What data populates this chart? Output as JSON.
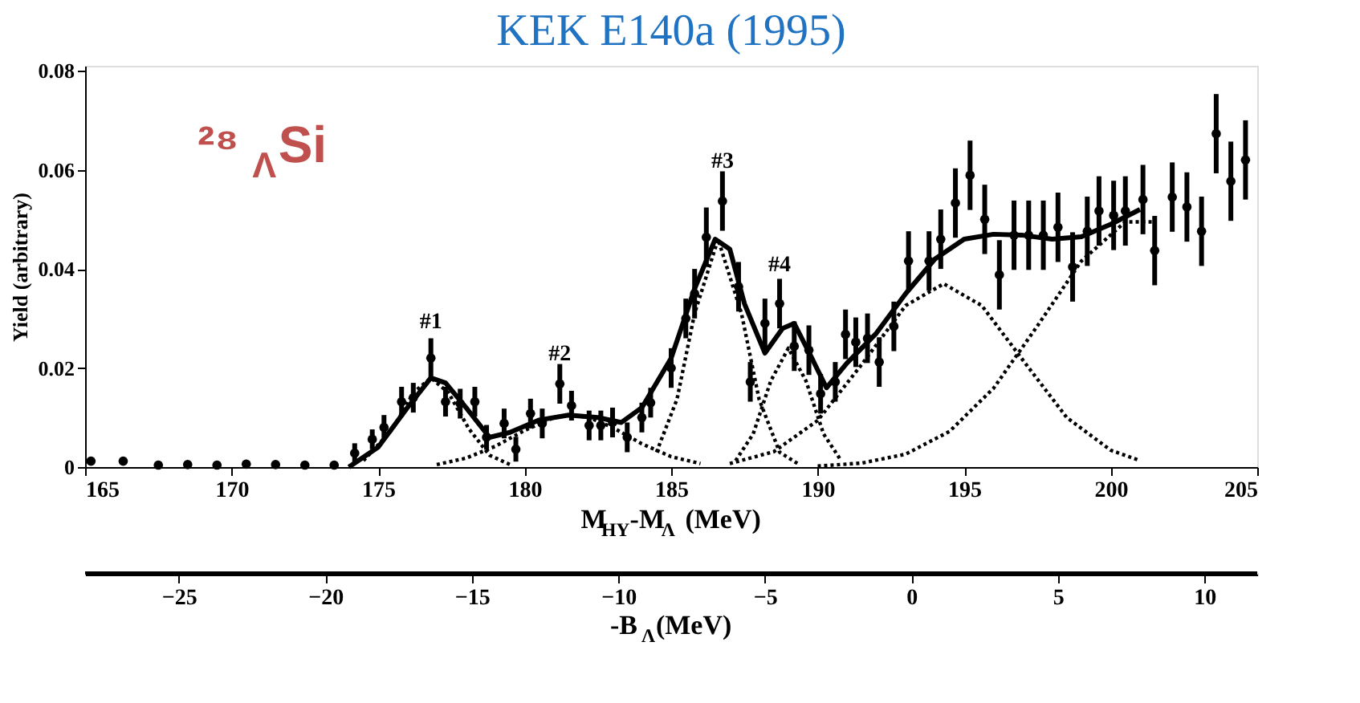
{
  "chart_data": {
    "type": "scatter",
    "title": "KEK E140a (1995)",
    "xlabel": "M$_{HY}$-M$_{Λ}$ (MeV)",
    "ylabel": "Yield (arbitrary)",
    "x2label": "-B$_{Λ}$(MeV)",
    "xlim": [
      165,
      205
    ],
    "xticks": [
      165,
      170,
      175,
      180,
      185,
      190,
      195,
      200,
      205
    ],
    "ylim": [
      0,
      0.081
    ],
    "yticks": [
      {
        "value": 0,
        "label": "0"
      },
      0.02,
      0.04,
      0.06,
      0.08
    ],
    "x2lim": [
      -28.2,
      11.8
    ],
    "x2ticks": [
      -25,
      -20,
      -15,
      -10,
      -5,
      0,
      5,
      10
    ],
    "grid": false,
    "series": [
      {
        "color": "#000000",
        "marker": "circle",
        "x": [
          165.2,
          166.3,
          167.5,
          168.5,
          169.5,
          170.5,
          171.5,
          172.5,
          173.5,
          174.2,
          174.8,
          175.2,
          175.8,
          176.2,
          176.8,
          177.3,
          177.8,
          178.3,
          178.7,
          179.3,
          179.7,
          180.2,
          180.6,
          181.2,
          181.6,
          182.2,
          182.6,
          183.0,
          183.5,
          184.0,
          184.3,
          185.0,
          185.5,
          185.8,
          186.2,
          186.75,
          187.3,
          187.7,
          188.2,
          188.7,
          189.2,
          189.7,
          190.1,
          190.6,
          190.95,
          191.3,
          191.7,
          192.1,
          192.6,
          193.1,
          193.8,
          194.2,
          194.7,
          195.2,
          195.7,
          196.2,
          196.7,
          197.2,
          197.7,
          198.2,
          198.7,
          199.2,
          199.6,
          200.1,
          200.5,
          201.1,
          201.5,
          202.1,
          202.6,
          203.1,
          203.6,
          204.1,
          204.6
        ],
        "values": [
          0.0012,
          0.0012,
          0.0004,
          0.0005,
          0.0004,
          0.0006,
          0.0005,
          0.0004,
          0.0004,
          0.0028,
          0.0056,
          0.008,
          0.0132,
          0.014,
          0.022,
          0.0132,
          0.0128,
          0.0132,
          0.006,
          0.0088,
          0.0036,
          0.0108,
          0.0088,
          0.0168,
          0.0124,
          0.0084,
          0.0084,
          0.009,
          0.006,
          0.01,
          0.013,
          0.02,
          0.03,
          0.035,
          0.0464,
          0.0537,
          0.0364,
          0.0172,
          0.029,
          0.033,
          0.0244,
          0.0236,
          0.0148,
          0.0172,
          0.0268,
          0.0252,
          0.026,
          0.0212,
          0.0284,
          0.0416,
          0.0416,
          0.046,
          0.0533,
          0.0589,
          0.05,
          0.0388,
          0.0468,
          0.0468,
          0.0468,
          0.0484,
          0.0404,
          0.0476,
          0.0517,
          0.0508,
          0.0517,
          0.054,
          0.0437,
          0.0545,
          0.0525,
          0.0476,
          0.0673,
          0.0577,
          0.062
        ],
        "errors": [
          null,
          null,
          null,
          null,
          null,
          null,
          null,
          null,
          null,
          0.002,
          0.002,
          0.0025,
          0.003,
          0.003,
          0.004,
          0.003,
          0.003,
          0.003,
          0.0025,
          0.003,
          0.0025,
          0.003,
          0.003,
          0.004,
          0.003,
          0.003,
          0.003,
          0.003,
          0.003,
          0.003,
          0.003,
          0.004,
          0.004,
          0.005,
          0.006,
          0.006,
          0.005,
          0.004,
          0.005,
          0.005,
          0.005,
          0.005,
          0.004,
          0.004,
          0.005,
          0.005,
          0.005,
          0.005,
          0.005,
          0.006,
          0.006,
          0.006,
          0.007,
          0.007,
          0.007,
          0.007,
          0.007,
          0.007,
          0.007,
          0.007,
          0.007,
          0.007,
          0.007,
          0.007,
          0.007,
          0.007,
          0.007,
          0.007,
          0.007,
          0.007,
          0.008,
          0.008,
          0.008
        ]
      },
      {
        "type": "line",
        "color": "#000000",
        "line_style": "solid",
        "x": [
          174,
          175,
          176,
          176.8,
          177.3,
          178,
          178.8,
          179.5,
          180.5,
          181.5,
          182.5,
          183.3,
          184,
          185,
          185.8,
          186.5,
          187,
          187.5,
          188.2,
          188.8,
          189.2,
          189.8,
          190.3,
          191,
          192,
          193,
          194,
          195,
          196,
          197,
          198,
          199,
          200,
          201
        ],
        "values": [
          0,
          0.004,
          0.012,
          0.018,
          0.017,
          0.012,
          0.006,
          0.007,
          0.0095,
          0.0105,
          0.01,
          0.009,
          0.012,
          0.022,
          0.036,
          0.046,
          0.044,
          0.033,
          0.023,
          0.028,
          0.029,
          0.022,
          0.016,
          0.021,
          0.027,
          0.035,
          0.042,
          0.046,
          0.047,
          0.0468,
          0.046,
          0.0465,
          0.049,
          0.052
        ]
      },
      {
        "type": "line",
        "color": "#000000",
        "line_style": "dotted",
        "x": [
          174.5,
          175.5,
          176.2,
          176.8,
          177.4,
          178.1,
          178.8,
          179.5
        ],
        "values": [
          0.0013,
          0.0077,
          0.015,
          0.018,
          0.015,
          0.0077,
          0.0024,
          0.0005
        ]
      },
      {
        "type": "line",
        "color": "#000000",
        "line_style": "dotted",
        "x": [
          177,
          178,
          179,
          180,
          181,
          181.6,
          182.2,
          183,
          184,
          185,
          186
        ],
        "values": [
          0.0005,
          0.0018,
          0.0042,
          0.0074,
          0.01,
          0.0105,
          0.01,
          0.008,
          0.0047,
          0.0021,
          0.0007
        ]
      },
      {
        "type": "line",
        "color": "#000000",
        "line_style": "dotted",
        "x": [
          184.5,
          185.2,
          185.8,
          186.6,
          187.4,
          188,
          188.7,
          189.4
        ],
        "values": [
          0.003,
          0.0137,
          0.031,
          0.046,
          0.031,
          0.0137,
          0.003,
          0.0004
        ]
      },
      {
        "type": "line",
        "color": "#000000",
        "line_style": "dotted",
        "x": [
          187.2,
          187.8,
          188.4,
          189,
          189.6,
          190.2,
          190.8
        ],
        "values": [
          0.0013,
          0.0067,
          0.0174,
          0.024,
          0.0174,
          0.0067,
          0.0013
        ]
      },
      {
        "type": "line",
        "color": "#000000",
        "line_style": "dotted",
        "x": [
          187,
          188.5,
          190,
          191.5,
          193,
          194.3,
          195.6,
          197,
          198.5,
          200,
          201
        ],
        "values": [
          0.0007,
          0.0031,
          0.0094,
          0.0207,
          0.0326,
          0.037,
          0.0326,
          0.0216,
          0.01,
          0.0034,
          0.0013
        ]
      },
      {
        "type": "line",
        "color": "#000000",
        "line_style": "dotted",
        "x": [
          190,
          191.5,
          193,
          194.5,
          196,
          197.5,
          199,
          200.5,
          201.5
        ],
        "values": [
          0.0002,
          0.0008,
          0.0026,
          0.0072,
          0.0159,
          0.0285,
          0.0416,
          0.0495,
          0.0495
        ]
      }
    ],
    "annotations": [
      {
        "text": "#1",
        "x": 176.8,
        "y": 0.027
      },
      {
        "text": "#2",
        "x": 181.2,
        "y": 0.0205
      },
      {
        "text": "#3",
        "x": 186.75,
        "y": 0.0595
      },
      {
        "text": "#4",
        "x": 188.7,
        "y": 0.0385
      },
      "²⁸$_{Λ}$Si"
    ]
  }
}
